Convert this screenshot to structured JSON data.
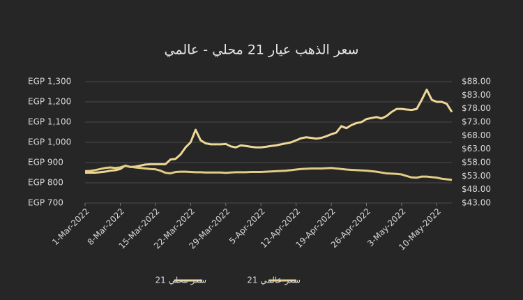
{
  "chart_data": {
    "type": "line",
    "title": "سعر الذهب عيار 21 محلي - عالمي",
    "x": [
      "2022-03-01",
      "2022-03-02",
      "2022-03-03",
      "2022-03-04",
      "2022-03-05",
      "2022-03-06",
      "2022-03-07",
      "2022-03-08",
      "2022-03-09",
      "2022-03-10",
      "2022-03-11",
      "2022-03-12",
      "2022-03-13",
      "2022-03-14",
      "2022-03-15",
      "2022-03-16",
      "2022-03-17",
      "2022-03-18",
      "2022-03-19",
      "2022-03-20",
      "2022-03-21",
      "2022-03-22",
      "2022-03-23",
      "2022-03-24",
      "2022-03-25",
      "2022-03-26",
      "2022-03-27",
      "2022-03-28",
      "2022-03-29",
      "2022-03-30",
      "2022-03-31",
      "2022-04-01",
      "2022-04-02",
      "2022-04-03",
      "2022-04-04",
      "2022-04-05",
      "2022-04-06",
      "2022-04-07",
      "2022-04-08",
      "2022-04-09",
      "2022-04-10",
      "2022-04-11",
      "2022-04-12",
      "2022-04-13",
      "2022-04-14",
      "2022-04-15",
      "2022-04-16",
      "2022-04-17",
      "2022-04-18",
      "2022-04-19",
      "2022-04-20",
      "2022-04-21",
      "2022-04-22",
      "2022-04-23",
      "2022-04-24",
      "2022-04-25",
      "2022-04-26",
      "2022-04-27",
      "2022-04-28",
      "2022-04-29",
      "2022-04-30",
      "2022-05-01",
      "2022-05-02",
      "2022-05-03",
      "2022-05-04",
      "2022-05-05",
      "2022-05-06",
      "2022-05-07",
      "2022-05-08",
      "2022-05-09",
      "2022-05-10",
      "2022-05-11",
      "2022-05-12",
      "2022-05-13"
    ],
    "xlim": [
      "2022-03-01",
      "2022-05-13"
    ],
    "xticks": [
      {
        "value": "2022-03-01",
        "label": "1-Mar-2022"
      },
      {
        "value": "2022-03-08",
        "label": "8-Mar-2022"
      },
      {
        "value": "2022-03-15",
        "label": "15-Mar-2022"
      },
      {
        "value": "2022-03-22",
        "label": "22-Mar-2022"
      },
      {
        "value": "2022-03-29",
        "label": "29-Mar-2022"
      },
      {
        "value": "2022-04-05",
        "label": "5-Apr-2022"
      },
      {
        "value": "2022-04-12",
        "label": "12-Apr-2022"
      },
      {
        "value": "2022-04-19",
        "label": "19-Apr-2022"
      },
      {
        "value": "2022-04-26",
        "label": "26-Apr-2022"
      },
      {
        "value": "2022-05-03",
        "label": "3-May-2022"
      },
      {
        "value": "2022-05-10",
        "label": "10-May-2022"
      }
    ],
    "ylim": [
      700,
      1300
    ],
    "yticks": [
      {
        "value": 700,
        "label": "EGP 700"
      },
      {
        "value": 800,
        "label": "EGP 800"
      },
      {
        "value": 900,
        "label": "EGP 900"
      },
      {
        "value": 1000,
        "label": "EGP 1,000"
      },
      {
        "value": 1100,
        "label": "EGP 1,100"
      },
      {
        "value": 1200,
        "label": "EGP 1,200"
      },
      {
        "value": 1300,
        "label": "EGP 1,300"
      }
    ],
    "y2lim": [
      43,
      88
    ],
    "y2ticks": [
      {
        "value": 43,
        "label": "$43.00"
      },
      {
        "value": 48,
        "label": "$48.00"
      },
      {
        "value": 53,
        "label": "$53.00"
      },
      {
        "value": 58,
        "label": "$58.00"
      },
      {
        "value": 63,
        "label": "$63.00"
      },
      {
        "value": 68,
        "label": "$68.00"
      },
      {
        "value": 73,
        "label": "$73.00"
      },
      {
        "value": 78,
        "label": "$78.00"
      },
      {
        "value": 83,
        "label": "$83.00"
      },
      {
        "value": 88,
        "label": "$88.00"
      }
    ],
    "grid": true,
    "legend": "bottom",
    "series": [
      {
        "name": "سعر محلي 21",
        "color": "#eed898",
        "values": [
          850,
          850,
          850,
          852,
          855,
          860,
          862,
          868,
          885,
          878,
          880,
          885,
          890,
          892,
          892,
          892,
          892,
          915,
          918,
          940,
          975,
          1000,
          1062,
          1010,
          995,
          990,
          990,
          990,
          992,
          980,
          975,
          985,
          982,
          978,
          975,
          975,
          978,
          982,
          985,
          990,
          995,
          1000,
          1010,
          1020,
          1025,
          1022,
          1018,
          1022,
          1030,
          1040,
          1048,
          1080,
          1070,
          1085,
          1095,
          1100,
          1115,
          1120,
          1125,
          1118,
          1130,
          1150,
          1165,
          1165,
          1162,
          1160,
          1165,
          1210,
          1260,
          1210,
          1200,
          1200,
          1190,
          1150
        ]
      },
      {
        "name": "سعر عالمي 21",
        "color": "#e3cc84",
        "axis": "y2",
        "values": [
          54.8,
          54.9,
          55.2,
          55.6,
          56.0,
          56.2,
          56.0,
          56.2,
          56.8,
          56.4,
          56.2,
          56.0,
          55.8,
          55.6,
          55.5,
          55.0,
          54.2,
          54.0,
          54.5,
          54.6,
          54.6,
          54.5,
          54.4,
          54.4,
          54.3,
          54.3,
          54.3,
          54.3,
          54.2,
          54.3,
          54.4,
          54.4,
          54.4,
          54.5,
          54.5,
          54.5,
          54.6,
          54.7,
          54.8,
          54.9,
          55.0,
          55.2,
          55.4,
          55.6,
          55.7,
          55.8,
          55.8,
          55.8,
          55.9,
          56.0,
          55.8,
          55.6,
          55.4,
          55.3,
          55.2,
          55.1,
          55.0,
          54.8,
          54.6,
          54.3,
          54.0,
          53.9,
          53.8,
          53.6,
          53.0,
          52.5,
          52.4,
          52.8,
          52.8,
          52.6,
          52.4,
          52.0,
          51.8,
          51.6
        ]
      }
    ]
  }
}
